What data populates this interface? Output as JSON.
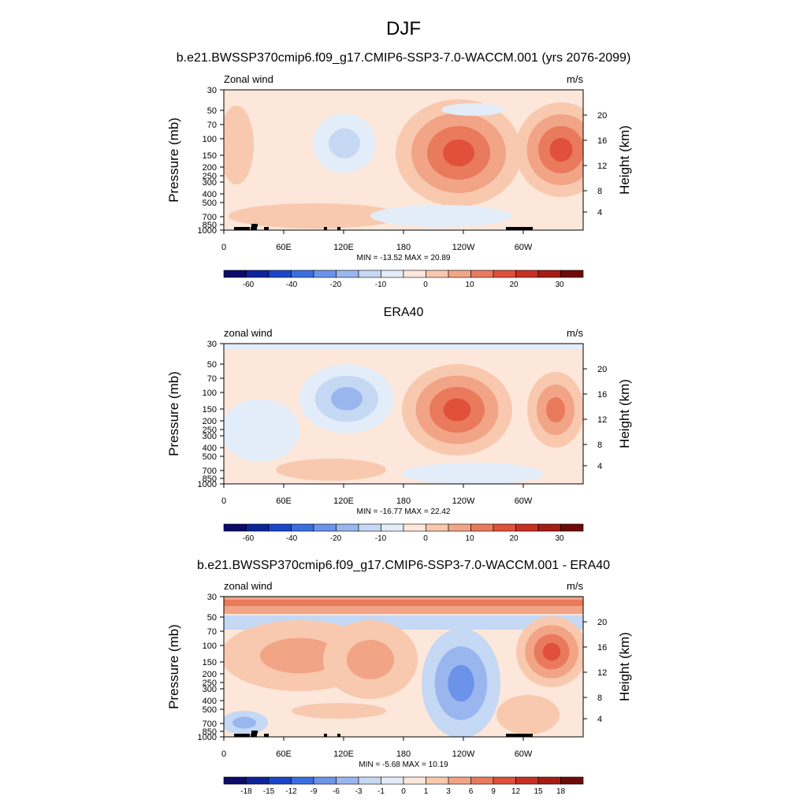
{
  "figure": {
    "title": "DJF"
  },
  "palettes": {
    "full": [
      "#0b0b6b",
      "#0e239a",
      "#1b46c9",
      "#3a6ee0",
      "#6b93ea",
      "#9ab6ef",
      "#c5d8f4",
      "#e3edf9",
      "#fde7da",
      "#f8c9ae",
      "#f2a487",
      "#ea7a5c",
      "#e0503a",
      "#c72f22",
      "#a41c14",
      "#6e0b08"
    ],
    "model_fill": "#fde7da"
  },
  "chart_data": [
    {
      "type": "heatmap",
      "title": "b.e21.BWSSP370cmip6.f09_g17.CMIP6-SSP3-7.0-WACCM.001 (yrs 2076-2099)",
      "left_label": "Zonal wind",
      "units": "m/s",
      "xlabel": "",
      "ylabel": "Pressure (mb)",
      "ylabel_right": "Height (km)",
      "x_ticks": [
        "0",
        "60E",
        "120E",
        "180",
        "120W",
        "60W"
      ],
      "y_ticks": [
        "30",
        "50",
        "70",
        "100",
        "150",
        "200",
        "250",
        "300",
        "400",
        "500",
        "700",
        "850",
        "1000"
      ],
      "y_ticks_right": [
        "20",
        "16",
        "12",
        "8",
        "4"
      ],
      "stats": "MIN = -13.52  MAX =  20.89",
      "colorbar_levels": [
        "-60",
        "-40",
        "-20",
        "-10",
        "0",
        "10",
        "20",
        "30"
      ],
      "min": -13.52,
      "max": 20.89
    },
    {
      "type": "heatmap",
      "title": "ERA40",
      "left_label": "zonal wind",
      "units": "m/s",
      "xlabel": "",
      "ylabel": "Pressure (mb)",
      "ylabel_right": "Height (km)",
      "x_ticks": [
        "0",
        "60E",
        "120E",
        "180",
        "120W",
        "60W"
      ],
      "y_ticks": [
        "30",
        "50",
        "70",
        "100",
        "150",
        "200",
        "250",
        "300",
        "400",
        "500",
        "700",
        "850",
        "1000"
      ],
      "y_ticks_right": [
        "20",
        "16",
        "12",
        "8",
        "4"
      ],
      "stats": "MIN = -16.77  MAX =  22.42",
      "colorbar_levels": [
        "-60",
        "-40",
        "-20",
        "-10",
        "0",
        "10",
        "20",
        "30"
      ],
      "min": -16.77,
      "max": 22.42
    },
    {
      "type": "heatmap",
      "title": "b.e21.BWSSP370cmip6.f09_g17.CMIP6-SSP3-7.0-WACCM.001 - ERA40",
      "left_label": "zonal wind",
      "units": "m/s",
      "xlabel": "",
      "ylabel": "Pressure (mb)",
      "ylabel_right": "Height (km)",
      "x_ticks": [
        "0",
        "60E",
        "120E",
        "180",
        "120W",
        "60W"
      ],
      "y_ticks": [
        "30",
        "50",
        "70",
        "100",
        "150",
        "200",
        "250",
        "300",
        "400",
        "500",
        "700",
        "850",
        "1000"
      ],
      "y_ticks_right": [
        "20",
        "16",
        "12",
        "8",
        "4"
      ],
      "stats": "MIN = -5.68  MAX = 10.19",
      "colorbar_levels": [
        "-18",
        "-15",
        "-12",
        "-9",
        "-6",
        "-3",
        "-1",
        "0",
        "1",
        "3",
        "6",
        "9",
        "12",
        "15",
        "18"
      ],
      "min": -5.68,
      "max": 10.19
    }
  ]
}
